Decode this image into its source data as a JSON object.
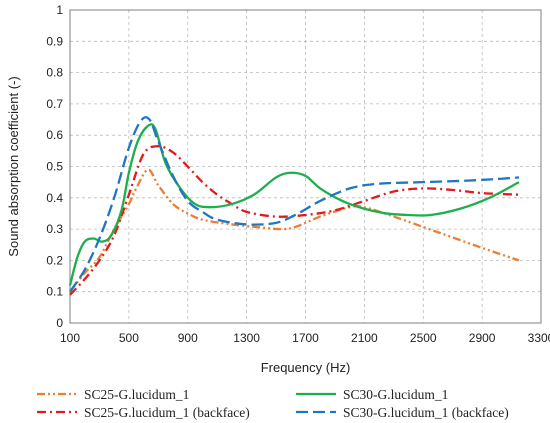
{
  "chart_data": {
    "type": "line",
    "xlabel": "Frequency (Hz)",
    "ylabel": "Sound absorption coefficient (-)",
    "xlim": [
      100,
      3300
    ],
    "ylim": [
      0,
      1
    ],
    "xticks": [
      "100",
      "500",
      "900",
      "1300",
      "1700",
      "2100",
      "2500",
      "2900",
      "3300"
    ],
    "yticks": [
      "0",
      "0.1",
      "0.2",
      "0.3",
      "0.4",
      "0.5",
      "0.6",
      "0.7",
      "0.8",
      "0.9",
      "1"
    ],
    "grid": true,
    "legend_position": "bottom",
    "series": [
      {
        "name": "SC25-G.lucidum_1",
        "color": "#ED7D31",
        "dash": "dash-dot-dot",
        "points": [
          [
            100,
            0.1
          ],
          [
            200,
            0.16
          ],
          [
            300,
            0.21
          ],
          [
            400,
            0.3
          ],
          [
            500,
            0.38
          ],
          [
            550,
            0.43
          ],
          [
            630,
            0.49
          ],
          [
            700,
            0.44
          ],
          [
            800,
            0.38
          ],
          [
            900,
            0.35
          ],
          [
            1000,
            0.33
          ],
          [
            1200,
            0.315
          ],
          [
            1400,
            0.305
          ],
          [
            1550,
            0.3
          ],
          [
            1650,
            0.31
          ],
          [
            1800,
            0.34
          ],
          [
            2000,
            0.37
          ],
          [
            2100,
            0.37
          ],
          [
            2300,
            0.34
          ],
          [
            2600,
            0.29
          ],
          [
            2900,
            0.24
          ],
          [
            3150,
            0.2
          ]
        ]
      },
      {
        "name": "SC25-G.lucidum_1 (backface)",
        "color": "#E31A1C",
        "dash": "dash-dot",
        "points": [
          [
            100,
            0.09
          ],
          [
            200,
            0.14
          ],
          [
            300,
            0.2
          ],
          [
            400,
            0.28
          ],
          [
            500,
            0.41
          ],
          [
            600,
            0.54
          ],
          [
            700,
            0.565
          ],
          [
            800,
            0.545
          ],
          [
            900,
            0.5
          ],
          [
            1000,
            0.45
          ],
          [
            1100,
            0.41
          ],
          [
            1200,
            0.38
          ],
          [
            1300,
            0.355
          ],
          [
            1500,
            0.34
          ],
          [
            1700,
            0.345
          ],
          [
            1900,
            0.36
          ],
          [
            2100,
            0.39
          ],
          [
            2300,
            0.42
          ],
          [
            2500,
            0.43
          ],
          [
            2700,
            0.425
          ],
          [
            2900,
            0.415
          ],
          [
            3150,
            0.41
          ]
        ]
      },
      {
        "name": "SC30-G.lucidum_1",
        "color": "#1DAF4E",
        "dash": "solid",
        "points": [
          [
            100,
            0.12
          ],
          [
            150,
            0.21
          ],
          [
            200,
            0.26
          ],
          [
            260,
            0.27
          ],
          [
            320,
            0.26
          ],
          [
            380,
            0.28
          ],
          [
            450,
            0.36
          ],
          [
            500,
            0.48
          ],
          [
            560,
            0.58
          ],
          [
            630,
            0.63
          ],
          [
            680,
            0.62
          ],
          [
            750,
            0.51
          ],
          [
            850,
            0.43
          ],
          [
            950,
            0.38
          ],
          [
            1050,
            0.37
          ],
          [
            1200,
            0.38
          ],
          [
            1350,
            0.41
          ],
          [
            1500,
            0.465
          ],
          [
            1600,
            0.48
          ],
          [
            1700,
            0.47
          ],
          [
            1800,
            0.43
          ],
          [
            1950,
            0.39
          ],
          [
            2100,
            0.365
          ],
          [
            2250,
            0.35
          ],
          [
            2400,
            0.345
          ],
          [
            2550,
            0.345
          ],
          [
            2750,
            0.365
          ],
          [
            2950,
            0.4
          ],
          [
            3150,
            0.45
          ]
        ]
      },
      {
        "name": "SC30-G.lucidum_1 (backface)",
        "color": "#1F77C4",
        "dash": "long-dash",
        "points": [
          [
            100,
            0.1
          ],
          [
            200,
            0.17
          ],
          [
            300,
            0.27
          ],
          [
            400,
            0.4
          ],
          [
            500,
            0.56
          ],
          [
            580,
            0.645
          ],
          [
            640,
            0.65
          ],
          [
            700,
            0.58
          ],
          [
            800,
            0.47
          ],
          [
            900,
            0.39
          ],
          [
            1000,
            0.355
          ],
          [
            1100,
            0.33
          ],
          [
            1300,
            0.315
          ],
          [
            1500,
            0.32
          ],
          [
            1650,
            0.35
          ],
          [
            1800,
            0.39
          ],
          [
            2000,
            0.43
          ],
          [
            2200,
            0.445
          ],
          [
            2500,
            0.45
          ],
          [
            2800,
            0.455
          ],
          [
            3000,
            0.46
          ],
          [
            3150,
            0.465
          ]
        ]
      }
    ]
  }
}
